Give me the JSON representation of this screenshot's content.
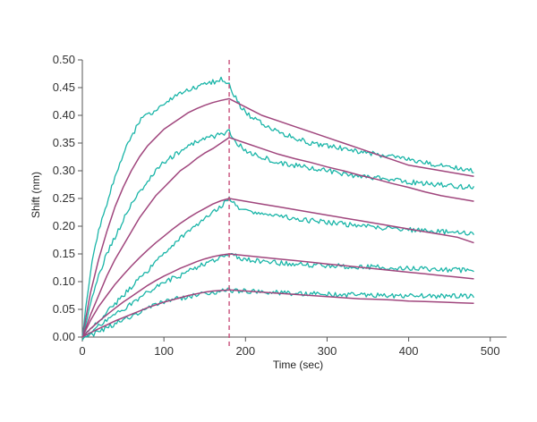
{
  "chart_data": {
    "type": "line",
    "title": "",
    "xlabel": "Time (sec)",
    "ylabel": "Shift (nm)",
    "xlim": [
      0,
      520
    ],
    "ylim": [
      0,
      0.5
    ],
    "x_ticks": [
      0,
      100,
      200,
      300,
      400,
      500
    ],
    "x_tick_labels": [
      "0",
      "100",
      "200",
      "300",
      "400",
      "500"
    ],
    "y_ticks": [
      0,
      0.05,
      0.1,
      0.15,
      0.2,
      0.25,
      0.3,
      0.35,
      0.4,
      0.45,
      0.5
    ],
    "y_tick_labels": [
      "0.00",
      "0.05",
      "0.10",
      "0.15",
      "0.20",
      "0.25",
      "0.30",
      "0.35",
      "0.40",
      "0.45",
      "0.50"
    ],
    "grid": false,
    "legend": "none",
    "colors": {
      "measured": "#1ab5a8",
      "fit": "#a0467d",
      "marker": "#c84f7a"
    },
    "vertical_marker": {
      "x": 180,
      "style": "dashed"
    },
    "series": [
      {
        "kind": "measured",
        "x": [
          0,
          10,
          20,
          30,
          40,
          50,
          60,
          70,
          80,
          90,
          100,
          110,
          120,
          130,
          140,
          150,
          160,
          170,
          180,
          190,
          200,
          220,
          240,
          260,
          280,
          300,
          320,
          340,
          360,
          380,
          400,
          420,
          440,
          460,
          480
        ],
        "y": [
          0.0,
          0.12,
          0.19,
          0.24,
          0.29,
          0.33,
          0.36,
          0.39,
          0.4,
          0.41,
          0.42,
          0.43,
          0.44,
          0.445,
          0.45,
          0.455,
          0.46,
          0.465,
          0.455,
          0.425,
          0.405,
          0.385,
          0.37,
          0.36,
          0.35,
          0.345,
          0.34,
          0.335,
          0.33,
          0.325,
          0.32,
          0.315,
          0.31,
          0.305,
          0.3
        ]
      },
      {
        "kind": "fit",
        "x": [
          0,
          10,
          20,
          30,
          40,
          50,
          60,
          70,
          80,
          90,
          100,
          110,
          120,
          130,
          140,
          150,
          160,
          170,
          180,
          200,
          220,
          240,
          260,
          280,
          300,
          320,
          340,
          360,
          380,
          400,
          420,
          440,
          460,
          480
        ],
        "y": [
          0.0,
          0.08,
          0.14,
          0.19,
          0.235,
          0.27,
          0.3,
          0.325,
          0.345,
          0.36,
          0.375,
          0.385,
          0.395,
          0.405,
          0.412,
          0.418,
          0.423,
          0.427,
          0.43,
          0.415,
          0.4,
          0.39,
          0.38,
          0.37,
          0.36,
          0.35,
          0.34,
          0.33,
          0.32,
          0.31,
          0.305,
          0.3,
          0.295,
          0.29
        ]
      },
      {
        "kind": "measured",
        "x": [
          0,
          10,
          20,
          30,
          40,
          50,
          60,
          70,
          80,
          90,
          100,
          110,
          120,
          130,
          140,
          150,
          160,
          170,
          180,
          190,
          200,
          220,
          240,
          260,
          280,
          300,
          320,
          340,
          360,
          380,
          400,
          420,
          440,
          460,
          480
        ],
        "y": [
          0.0,
          0.06,
          0.11,
          0.15,
          0.18,
          0.21,
          0.24,
          0.26,
          0.28,
          0.3,
          0.315,
          0.325,
          0.335,
          0.345,
          0.352,
          0.358,
          0.362,
          0.365,
          0.37,
          0.35,
          0.335,
          0.325,
          0.315,
          0.31,
          0.305,
          0.3,
          0.295,
          0.29,
          0.287,
          0.283,
          0.28,
          0.277,
          0.275,
          0.272,
          0.27
        ]
      },
      {
        "kind": "fit",
        "x": [
          0,
          10,
          20,
          30,
          40,
          50,
          60,
          70,
          80,
          90,
          100,
          110,
          120,
          130,
          140,
          150,
          160,
          170,
          180,
          200,
          220,
          240,
          260,
          280,
          300,
          320,
          340,
          360,
          380,
          400,
          420,
          440,
          460,
          480
        ],
        "y": [
          0.0,
          0.04,
          0.075,
          0.11,
          0.14,
          0.165,
          0.19,
          0.215,
          0.235,
          0.255,
          0.27,
          0.285,
          0.3,
          0.31,
          0.322,
          0.332,
          0.34,
          0.35,
          0.36,
          0.35,
          0.34,
          0.33,
          0.322,
          0.315,
          0.307,
          0.3,
          0.292,
          0.285,
          0.277,
          0.27,
          0.262,
          0.255,
          0.25,
          0.245
        ]
      },
      {
        "kind": "measured",
        "x": [
          0,
          10,
          20,
          30,
          40,
          50,
          60,
          70,
          80,
          90,
          100,
          110,
          120,
          130,
          140,
          150,
          160,
          170,
          180,
          190,
          200,
          220,
          240,
          260,
          280,
          300,
          320,
          340,
          360,
          380,
          400,
          420,
          440,
          460,
          480
        ],
        "y": [
          0.0,
          0.015,
          0.03,
          0.045,
          0.06,
          0.075,
          0.09,
          0.105,
          0.12,
          0.135,
          0.15,
          0.165,
          0.18,
          0.19,
          0.2,
          0.215,
          0.225,
          0.235,
          0.25,
          0.235,
          0.228,
          0.222,
          0.218,
          0.214,
          0.21,
          0.207,
          0.204,
          0.201,
          0.198,
          0.196,
          0.194,
          0.192,
          0.19,
          0.189,
          0.188
        ]
      },
      {
        "kind": "fit",
        "x": [
          0,
          10,
          20,
          30,
          40,
          50,
          60,
          70,
          80,
          90,
          100,
          110,
          120,
          130,
          140,
          150,
          160,
          170,
          180,
          200,
          220,
          240,
          260,
          280,
          300,
          320,
          340,
          360,
          380,
          400,
          420,
          440,
          460,
          480
        ],
        "y": [
          0.0,
          0.03,
          0.055,
          0.075,
          0.095,
          0.112,
          0.128,
          0.143,
          0.157,
          0.17,
          0.182,
          0.194,
          0.205,
          0.215,
          0.224,
          0.232,
          0.24,
          0.246,
          0.25,
          0.245,
          0.24,
          0.235,
          0.23,
          0.225,
          0.22,
          0.215,
          0.21,
          0.205,
          0.2,
          0.195,
          0.19,
          0.185,
          0.18,
          0.17
        ]
      },
      {
        "kind": "measured",
        "x": [
          0,
          10,
          20,
          30,
          40,
          50,
          60,
          70,
          80,
          90,
          100,
          110,
          120,
          130,
          140,
          150,
          160,
          170,
          180,
          190,
          200,
          220,
          240,
          260,
          280,
          300,
          320,
          340,
          360,
          380,
          400,
          420,
          440,
          460,
          480
        ],
        "y": [
          0.0,
          0.01,
          0.02,
          0.03,
          0.04,
          0.05,
          0.06,
          0.07,
          0.08,
          0.09,
          0.1,
          0.105,
          0.11,
          0.118,
          0.125,
          0.132,
          0.138,
          0.143,
          0.15,
          0.145,
          0.14,
          0.137,
          0.134,
          0.132,
          0.13,
          0.129,
          0.128,
          0.127,
          0.126,
          0.125,
          0.124,
          0.123,
          0.122,
          0.121,
          0.12
        ]
      },
      {
        "kind": "fit",
        "x": [
          0,
          10,
          20,
          30,
          40,
          50,
          60,
          70,
          80,
          90,
          100,
          110,
          120,
          130,
          140,
          150,
          160,
          170,
          180,
          200,
          220,
          240,
          260,
          280,
          300,
          320,
          340,
          360,
          380,
          400,
          420,
          440,
          460,
          480
        ],
        "y": [
          0.0,
          0.015,
          0.028,
          0.04,
          0.052,
          0.063,
          0.073,
          0.083,
          0.093,
          0.102,
          0.11,
          0.117,
          0.124,
          0.13,
          0.136,
          0.141,
          0.145,
          0.148,
          0.15,
          0.147,
          0.144,
          0.141,
          0.138,
          0.135,
          0.132,
          0.129,
          0.126,
          0.123,
          0.12,
          0.117,
          0.114,
          0.111,
          0.108,
          0.105
        ]
      },
      {
        "kind": "measured",
        "x": [
          0,
          10,
          20,
          30,
          40,
          50,
          60,
          70,
          80,
          90,
          100,
          110,
          120,
          130,
          140,
          150,
          160,
          170,
          180,
          190,
          200,
          220,
          240,
          260,
          280,
          300,
          320,
          340,
          360,
          380,
          400,
          420,
          440,
          460,
          480
        ],
        "y": [
          -0.005,
          0.003,
          0.01,
          0.017,
          0.024,
          0.031,
          0.038,
          0.045,
          0.052,
          0.058,
          0.063,
          0.067,
          0.07,
          0.073,
          0.076,
          0.078,
          0.08,
          0.082,
          0.085,
          0.084,
          0.083,
          0.081,
          0.08,
          0.079,
          0.078,
          0.077,
          0.076,
          0.076,
          0.075,
          0.075,
          0.074,
          0.074,
          0.074,
          0.074,
          0.074
        ]
      },
      {
        "kind": "fit",
        "x": [
          0,
          10,
          20,
          30,
          40,
          50,
          60,
          70,
          80,
          90,
          100,
          110,
          120,
          130,
          140,
          150,
          160,
          170,
          180,
          200,
          220,
          240,
          260,
          280,
          300,
          320,
          340,
          360,
          380,
          400,
          420,
          440,
          460,
          480
        ],
        "y": [
          0.0,
          0.008,
          0.015,
          0.022,
          0.029,
          0.035,
          0.041,
          0.047,
          0.053,
          0.058,
          0.063,
          0.067,
          0.071,
          0.075,
          0.078,
          0.081,
          0.083,
          0.084,
          0.085,
          0.083,
          0.081,
          0.079,
          0.077,
          0.075,
          0.073,
          0.071,
          0.069,
          0.068,
          0.067,
          0.065,
          0.064,
          0.063,
          0.062,
          0.061
        ]
      }
    ]
  }
}
